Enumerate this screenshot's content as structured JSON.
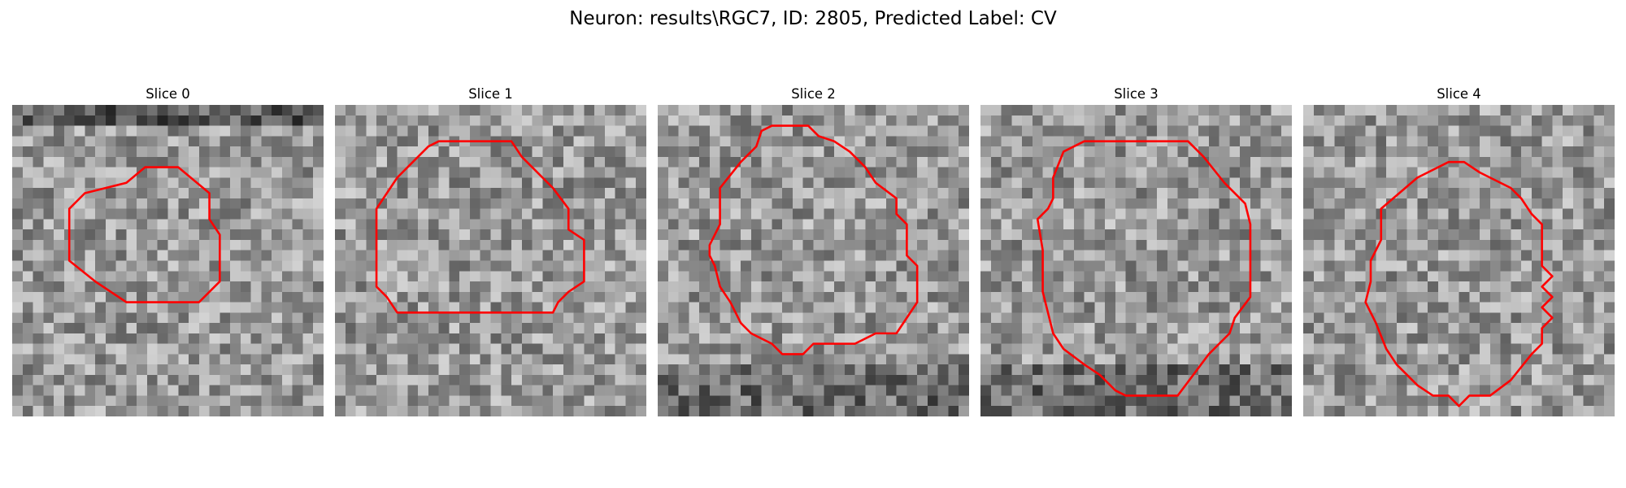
{
  "figure": {
    "title": "Neuron: results\\RGC7, ID: 2805, Predicted Label: CV"
  },
  "colors": {
    "contour": "#ff0000",
    "colormap": "gray"
  },
  "slices": [
    {
      "title": "Slice 0"
    },
    {
      "title": "Slice 1"
    },
    {
      "title": "Slice 2"
    },
    {
      "title": "Slice 3"
    },
    {
      "title": "Slice 4"
    }
  ]
}
